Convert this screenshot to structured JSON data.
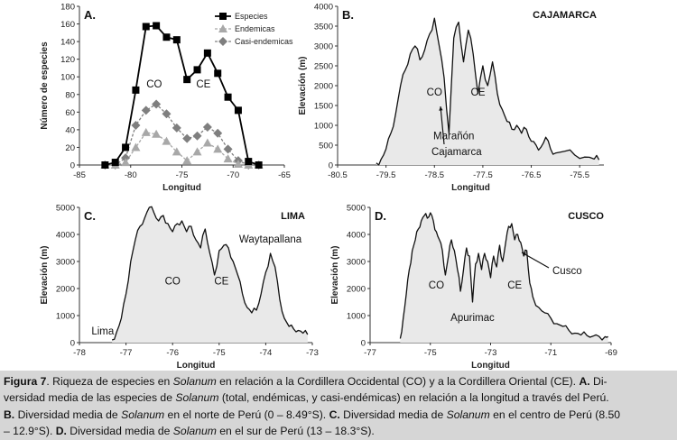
{
  "chart_data": [
    {
      "id": "A",
      "type": "line",
      "panel_label": "A.",
      "xlabel": "Longitud",
      "ylabel": "Número de especies",
      "xlim": [
        -85,
        -65
      ],
      "ylim": [
        0,
        180
      ],
      "xticks": [
        "-85",
        "-80",
        "-75",
        "-70",
        "-65"
      ],
      "yticks": [
        "0",
        "20",
        "40",
        "60",
        "80",
        "100",
        "120",
        "140",
        "160",
        "180"
      ],
      "legend_position": "top-right",
      "x": [
        -82.5,
        -81.5,
        -80.5,
        -79.5,
        -78.5,
        -77.5,
        -76.5,
        -75.5,
        -74.5,
        -73.5,
        -72.5,
        -71.5,
        -70.5,
        -69.5,
        -68.5,
        -67.5
      ],
      "series": [
        {
          "name": "Especies",
          "color": "#000000",
          "marker": "square",
          "values": [
            0,
            3,
            20,
            85,
            157,
            158,
            145,
            142,
            97,
            108,
            127,
            104,
            77,
            62,
            4,
            0
          ]
        },
        {
          "name": "Endemicas",
          "color": "#a8a8a8",
          "marker": "triangle",
          "values": [
            0,
            0,
            3,
            20,
            37,
            35,
            27,
            15,
            5,
            15,
            25,
            18,
            7,
            1,
            0,
            0
          ]
        },
        {
          "name": "Casi-endemicas",
          "color": "#7f7f7f",
          "marker": "diamond",
          "values": [
            0,
            0,
            8,
            45,
            62,
            69,
            58,
            42,
            30,
            33,
            43,
            36,
            18,
            5,
            0,
            0
          ]
        }
      ],
      "annotations": [
        {
          "text": "CO",
          "x": -77.7,
          "y": 88
        },
        {
          "text": "CE",
          "x": -72.9,
          "y": 88
        }
      ]
    },
    {
      "id": "B",
      "type": "area",
      "panel_label": "B.",
      "title": "CAJAMARCA",
      "xlabel": "Longitud",
      "ylabel": "Elevación (m)",
      "xlim": [
        -80.5,
        -75
      ],
      "ylim": [
        0,
        4000
      ],
      "xticks": [
        "-80.5",
        "-79.5",
        "-78.5",
        "-77.5",
        "-76.5",
        "-75.5"
      ],
      "yticks": [
        "0",
        "500",
        "1000",
        "1500",
        "2000",
        "2500",
        "3000",
        "3500",
        "4000"
      ],
      "x": [
        -79.7,
        -79.6,
        -79.5,
        -79.4,
        -79.3,
        -79.2,
        -79.1,
        -79.0,
        -78.9,
        -78.8,
        -78.7,
        -78.6,
        -78.5,
        -78.4,
        -78.3,
        -78.2,
        -78.1,
        -78.0,
        -77.9,
        -77.8,
        -77.7,
        -77.6,
        -77.5,
        -77.4,
        -77.3,
        -77.2,
        -77.1,
        -77.0,
        -76.9,
        -76.8,
        -76.7,
        -76.6,
        -76.5,
        -76.4,
        -76.3,
        -76.2,
        -76.1,
        -76.0,
        -75.8,
        -75.6,
        -75.4,
        -75.2,
        -75.1
      ],
      "values": [
        50,
        150,
        400,
        800,
        1300,
        2000,
        2400,
        2800,
        3000,
        2650,
        2900,
        3300,
        3700,
        3000,
        2200,
        800,
        3200,
        3600,
        2600,
        3400,
        2800,
        1800,
        2500,
        2000,
        2600,
        1800,
        1400,
        1100,
        900,
        1000,
        800,
        900,
        600,
        500,
        450,
        700,
        400,
        300,
        350,
        250,
        200,
        150,
        130
      ],
      "annotations": [
        {
          "text": "CO",
          "x": -78.5,
          "y": 1750
        },
        {
          "text": "CE",
          "x": -77.6,
          "y": 1750
        },
        {
          "text": "Marañón",
          "x": -78.1,
          "y": 650
        },
        {
          "text": "Cajamarca",
          "x": -79.1,
          "y": 250
        }
      ]
    },
    {
      "id": "C",
      "type": "area",
      "panel_label": "C.",
      "title": "LIMA",
      "xlabel": "Longitud",
      "ylabel": "Elevación (m)",
      "xlim": [
        -78,
        -73
      ],
      "ylim": [
        0,
        5000
      ],
      "xticks": [
        "-78",
        "-77",
        "-76",
        "-75",
        "-74",
        "-73"
      ],
      "yticks": [
        "0",
        "1000",
        "2000",
        "3000",
        "4000",
        "5000"
      ],
      "x": [
        -77.3,
        -77.2,
        -77.1,
        -77.0,
        -76.9,
        -76.8,
        -76.7,
        -76.6,
        -76.5,
        -76.4,
        -76.3,
        -76.2,
        -76.1,
        -76.0,
        -75.9,
        -75.8,
        -75.7,
        -75.6,
        -75.5,
        -75.4,
        -75.3,
        -75.2,
        -75.1,
        -75.0,
        -74.9,
        -74.8,
        -74.7,
        -74.6,
        -74.5,
        -74.4,
        -74.3,
        -74.2,
        -74.1,
        -74.0,
        -73.9,
        -73.8,
        -73.7,
        -73.6,
        -73.5,
        -73.4,
        -73.3,
        -73.2,
        -73.1
      ],
      "values": [
        100,
        400,
        900,
        1800,
        3000,
        3800,
        4300,
        4600,
        5000,
        4800,
        4500,
        4700,
        4400,
        4100,
        4400,
        4500,
        4100,
        4300,
        3800,
        3500,
        4200,
        3300,
        2500,
        3400,
        3600,
        3500,
        3000,
        2500,
        1800,
        1300,
        1100,
        1200,
        1800,
        2600,
        3300,
        2800,
        1600,
        900,
        600,
        500,
        450,
        350,
        300
      ],
      "annotations": [
        {
          "text": "CO",
          "x": -76.0,
          "y": 2150
        },
        {
          "text": "CE",
          "x": -74.95,
          "y": 2150
        },
        {
          "text": "Waytapallana",
          "x": -73.9,
          "y": 3700
        },
        {
          "text": "Lima",
          "x": -77.5,
          "y": 300
        }
      ]
    },
    {
      "id": "D",
      "type": "area",
      "panel_label": "D.",
      "title": "CUSCO",
      "xlabel": "Longitud",
      "ylabel": "Elevación (m)",
      "xlim": [
        -77,
        -69
      ],
      "ylim": [
        0,
        5000
      ],
      "xticks": [
        "-77",
        "-75",
        "-73",
        "-71",
        "-69"
      ],
      "yticks": [
        "0",
        "1000",
        "2000",
        "3000",
        "4000",
        "5000"
      ],
      "x": [
        -76.0,
        -75.9,
        -75.8,
        -75.7,
        -75.6,
        -75.5,
        -75.4,
        -75.3,
        -75.2,
        -75.1,
        -75.0,
        -74.9,
        -74.8,
        -74.7,
        -74.6,
        -74.5,
        -74.4,
        -74.3,
        -74.2,
        -74.1,
        -74.0,
        -73.9,
        -73.8,
        -73.7,
        -73.6,
        -73.5,
        -73.4,
        -73.3,
        -73.2,
        -73.1,
        -73.0,
        -72.9,
        -72.8,
        -72.7,
        -72.6,
        -72.5,
        -72.4,
        -72.3,
        -72.2,
        -72.1,
        -72.0,
        -71.9,
        -71.8,
        -71.7,
        -71.6,
        -71.4,
        -71.2,
        -71.0,
        -70.8,
        -70.6,
        -70.4,
        -70.2,
        -70.0,
        -69.8,
        -69.6,
        -69.4,
        -69.2,
        -69.1
      ],
      "values": [
        150,
        900,
        1800,
        2700,
        3400,
        3800,
        4200,
        4500,
        4700,
        4600,
        4800,
        4500,
        4100,
        3800,
        3400,
        2500,
        3200,
        3800,
        3400,
        2700,
        1900,
        2700,
        3500,
        3200,
        1500,
        2900,
        3300,
        2700,
        3300,
        3000,
        2400,
        3200,
        2800,
        3600,
        3000,
        3700,
        4300,
        4400,
        3800,
        4000,
        3700,
        3200,
        3400,
        2200,
        1700,
        1300,
        1100,
        900,
        700,
        600,
        450,
        350,
        280,
        260,
        240,
        230,
        220,
        220
      ],
      "annotations": [
        {
          "text": "CO",
          "x": -74.8,
          "y": 2000
        },
        {
          "text": "CE",
          "x": -72.2,
          "y": 2000
        },
        {
          "text": "Cusco",
          "x": -71.3,
          "y": 2300
        },
        {
          "text": "Apurimac",
          "x": -73.6,
          "y": 800
        }
      ]
    }
  ],
  "caption": {
    "fig_label": "Figura 7",
    "l1a": ". Riqueza de especies en ",
    "solanum": "Solanum",
    "l1b": " en relación a la Cordillera Occidental (CO) y a la Cordillera Oriental (CE). ",
    "a": "A.",
    "l1c": " Di-",
    "l2a": "versidad media de las especies de ",
    "l2b": " (total, endémicas, y casi-endémicas) en relación a la longitud a través del Perú.",
    "b": "B.",
    "l3a": " Diversidad media de ",
    "l3b": " en el norte de Perú (0 – 8.49°S). ",
    "c": "C.",
    "l3c": " Diversidad media de ",
    "l3d": " en el centro de Perú (8.50",
    "l4a": "– 12.9°S). ",
    "d": "D.",
    "l4b": " Diversidad media de ",
    "l4c": " en el sur de Perú (13 – 18.3°S)."
  }
}
